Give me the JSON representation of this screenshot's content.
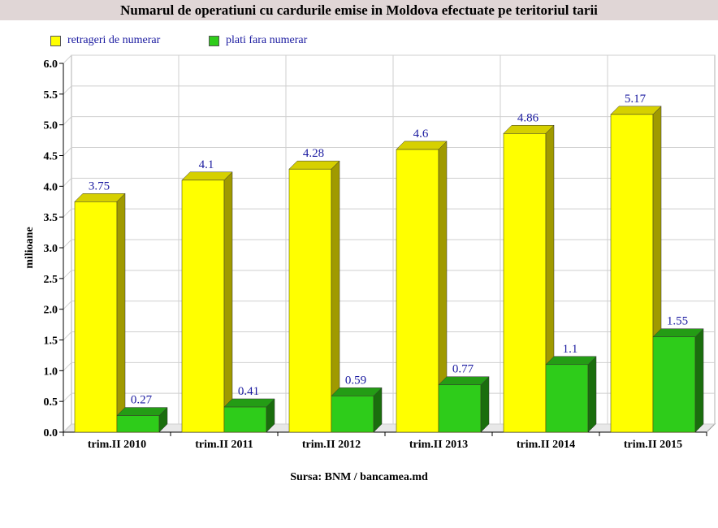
{
  "title": "Numarul de operatiuni cu cardurile emise in Moldova efectuate pe teritoriul tarii",
  "source": "Sursa: BNM / bancamea.md",
  "colors": {
    "yellow_front": "#ffff00",
    "yellow_side": "#a09a00",
    "yellow_top": "#d6d000",
    "green_front": "#2ecc1a",
    "green_side": "#1a6e0d",
    "green_top": "#249c15",
    "label": "#1a1aa0"
  },
  "chart_data": {
    "type": "bar",
    "title": "Numarul de operatiuni cu cardurile emise in Moldova efectuate pe teritoriul tarii",
    "xlabel": "",
    "ylabel": "milioane",
    "ylim": [
      0,
      6
    ],
    "yticks": [
      "0.0",
      "0.5",
      "1.0",
      "1.5",
      "2.0",
      "2.5",
      "3.0",
      "3.5",
      "4.0",
      "4.5",
      "5.0",
      "5.5",
      "6.0"
    ],
    "grid": true,
    "legend_position": "top-left",
    "categories": [
      "trim.II 2010",
      "trim.II 2011",
      "trim.II 2012",
      "trim.II 2013",
      "trim.II 2014",
      "trim.II 2015"
    ],
    "series": [
      {
        "name": "retrageri de numerar",
        "values": [
          3.75,
          4.1,
          4.28,
          4.6,
          4.86,
          5.17
        ],
        "labels": [
          "3.75",
          "4.1",
          "4.28",
          "4.6",
          "4.86",
          "5.17"
        ]
      },
      {
        "name": "plati fara numerar",
        "values": [
          0.27,
          0.41,
          0.59,
          0.77,
          1.1,
          1.55
        ],
        "labels": [
          "0.27",
          "0.41",
          "0.59",
          "0.77",
          "1.1",
          "1.55"
        ]
      }
    ]
  }
}
